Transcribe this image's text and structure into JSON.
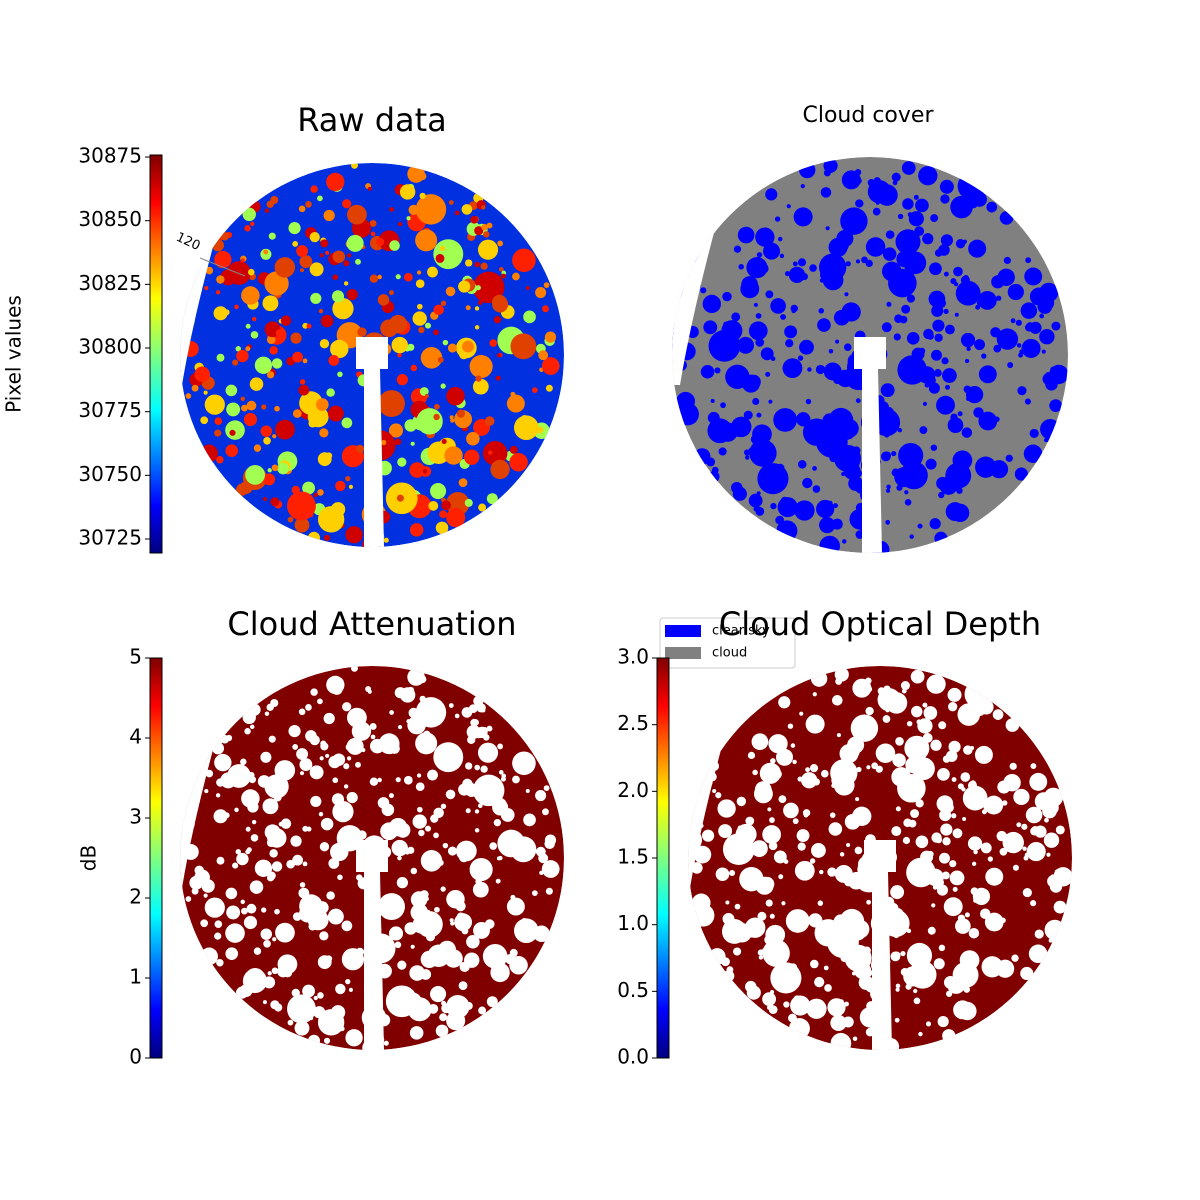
{
  "chart_data": [
    {
      "type": "image",
      "title": "Raw data",
      "annotations": [
        "120"
      ],
      "colorbar": {
        "label": "Pixel values",
        "colormap": "jet",
        "lim": [
          30719.5,
          30875.8
        ],
        "ticks": [
          30725,
          30750,
          30775,
          30800,
          30825,
          30850,
          30875
        ]
      }
    },
    {
      "type": "image",
      "title": "Cloud cover",
      "legend": [
        {
          "name": "clear sky",
          "color": "#0000ff"
        },
        {
          "name": "cloud",
          "color": "#808080"
        }
      ]
    },
    {
      "type": "image",
      "title": "Cloud Attenuation",
      "colorbar": {
        "label": "dB",
        "colormap": "jet",
        "lim": [
          0,
          5
        ],
        "ticks": [
          0,
          1,
          2,
          3,
          4,
          5
        ]
      }
    },
    {
      "type": "image",
      "title": "Cloud Optical Depth",
      "colorbar": {
        "colormap": "jet",
        "lim": [
          0,
          3
        ],
        "ticks": [
          {
            "value": 0,
            "label": "0.0"
          },
          {
            "value": 0.5,
            "label": "0.5"
          },
          {
            "value": 1,
            "label": "1.0"
          },
          {
            "value": 1.5,
            "label": "1.5"
          },
          {
            "value": 2,
            "label": "2.0"
          },
          {
            "value": 2.5,
            "label": "2.5"
          },
          {
            "value": 3,
            "label": "3.0"
          }
        ]
      }
    }
  ]
}
